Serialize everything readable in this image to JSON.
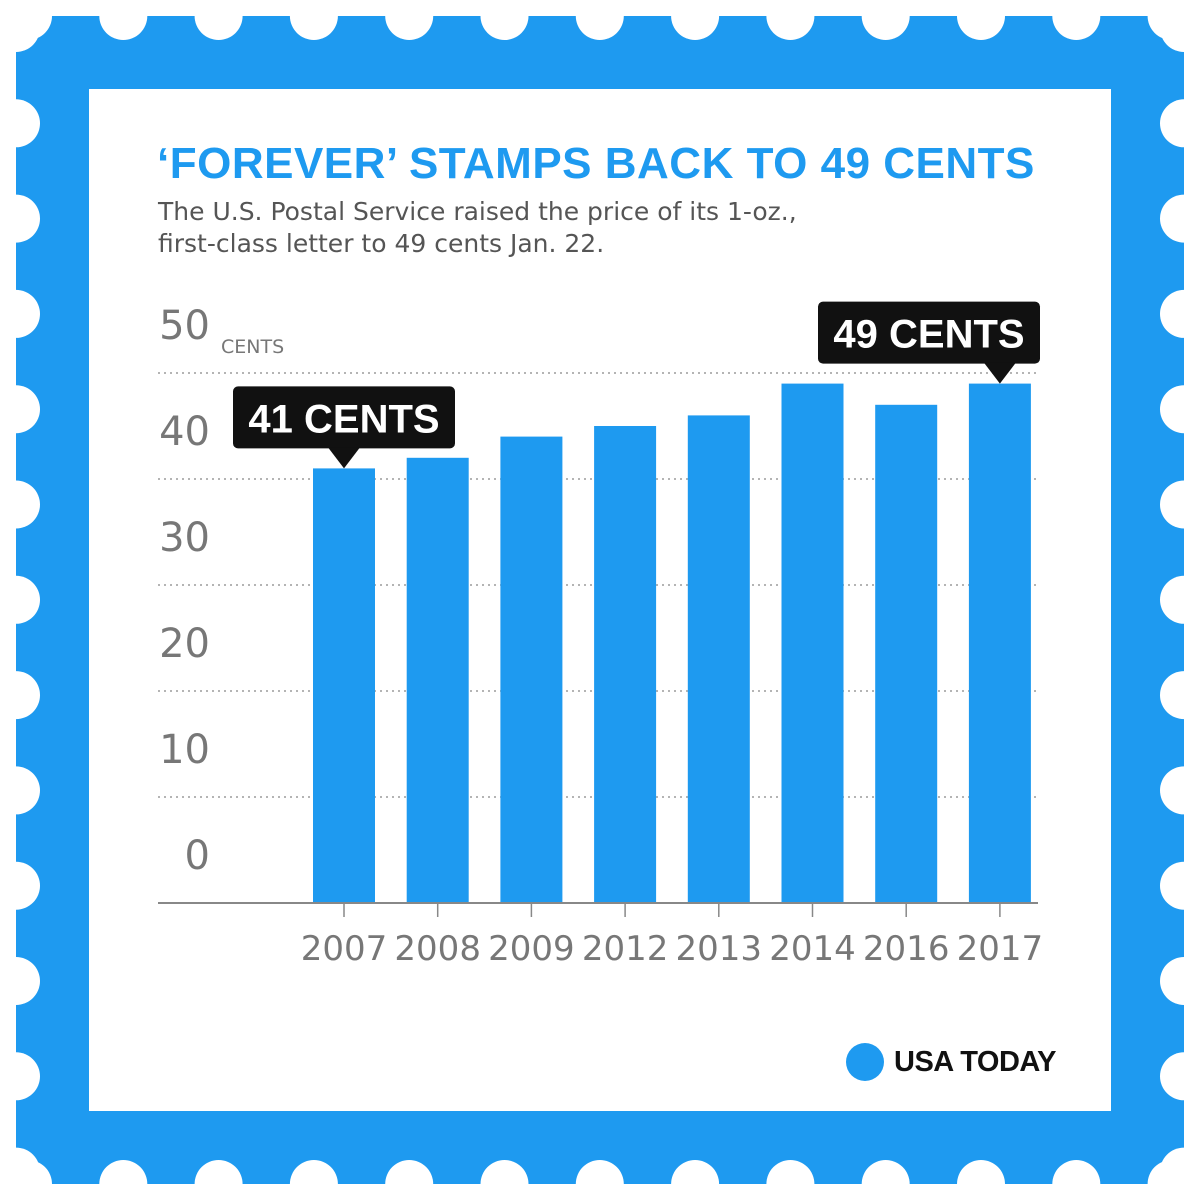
{
  "colors": {
    "accent": "#1e9af0",
    "callout": "#111111",
    "grid": "#888888",
    "ticks": "#777777"
  },
  "title": "‘FOREVER’ STAMPS BACK TO 49 CENTS",
  "subtitle_lines": [
    "The U.S. Postal Service raised the price of its 1-oz.,",
    "first-class letter to 49 cents Jan. 22."
  ],
  "brand": "USA TODAY",
  "chart_data": {
    "type": "bar",
    "categories": [
      "2007",
      "2008",
      "2009",
      "2012",
      "2013",
      "2014",
      "2016",
      "2017"
    ],
    "values": [
      41,
      42,
      44,
      45,
      46,
      49,
      47,
      49
    ],
    "ylim": [
      0,
      50
    ],
    "yticks": [
      "0",
      "10",
      "20",
      "30",
      "40",
      "50"
    ],
    "yunit": "CENTS",
    "grid": "dotted horizontal",
    "annotations": [
      {
        "category": "2007",
        "label": "41 CENTS"
      },
      {
        "category": "2017",
        "label": "49 CENTS"
      }
    ]
  }
}
